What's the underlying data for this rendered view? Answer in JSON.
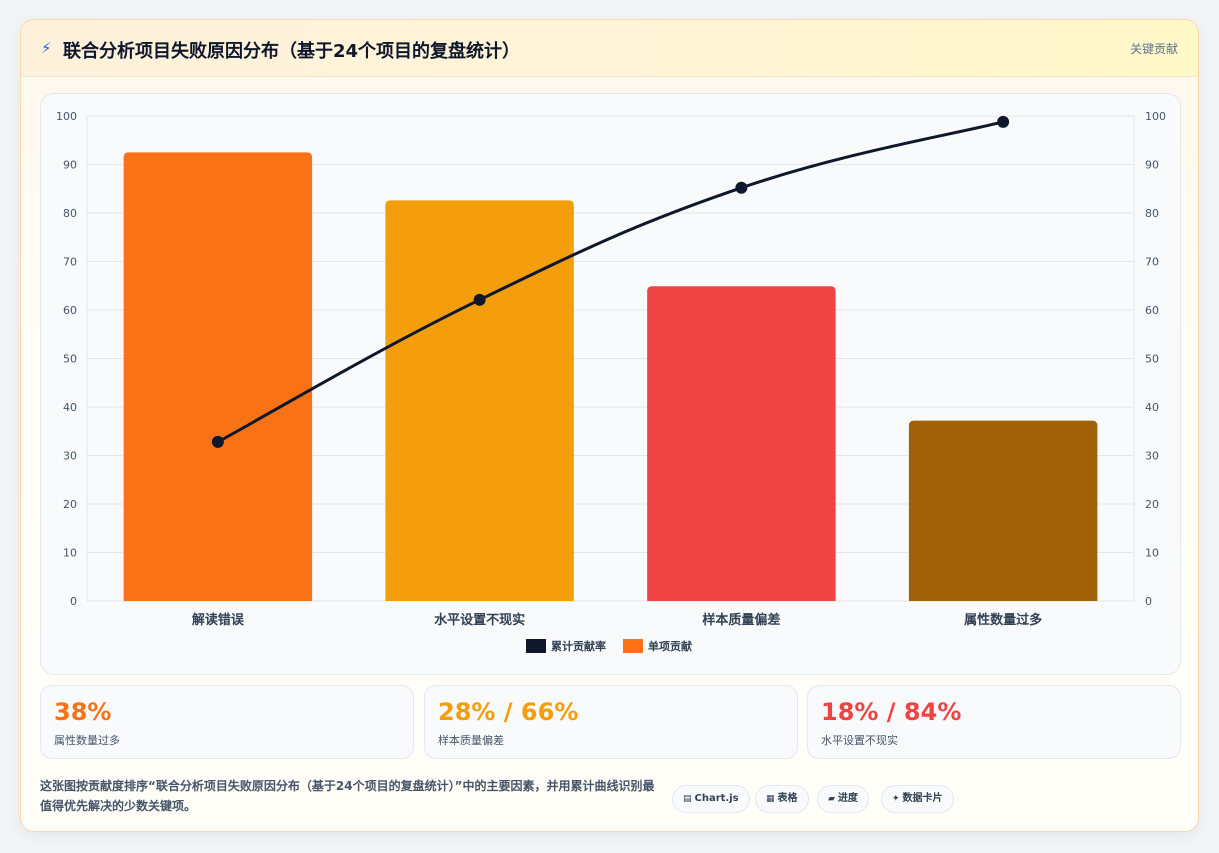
{
  "header": {
    "title": "联合分析项目失败原因分布（基于24个项目的复盘统计）",
    "tag": "关键贡献",
    "icon": "lightning-icon"
  },
  "chart_data": {
    "type": "bar",
    "categories": [
      "解读错误",
      "水平设置不现实",
      "样本质量偏差",
      "属性数量过多"
    ],
    "series": [
      {
        "name": "单项贡献",
        "type": "bar",
        "values": [
          92.5,
          82.6,
          64.9,
          37.2
        ],
        "colors": [
          "#f97316",
          "#f59e0b",
          "#ef4444",
          "#a16207"
        ]
      },
      {
        "name": "累计贡献率",
        "type": "line",
        "values": [
          32.8,
          62.1,
          85.2,
          98.8
        ],
        "color": "#0f172a"
      }
    ],
    "ylim": [
      0,
      100
    ],
    "y2lim": [
      0,
      100
    ],
    "yticks": [
      0,
      10,
      20,
      30,
      40,
      50,
      60,
      70,
      80,
      90,
      100
    ],
    "grid": true,
    "legend": [
      {
        "name": "累计贡献率",
        "color": "#0f172a"
      },
      {
        "name": "单项贡献",
        "color": "#f97316"
      }
    ],
    "legend_position": "bottom"
  },
  "stats": [
    {
      "value": "38%",
      "label": "属性数量过多",
      "color": "#f97316"
    },
    {
      "value": "28% / 66%",
      "label": "样本质量偏差",
      "color": "#f59e0b"
    },
    {
      "value": "18% / 84%",
      "label": "水平设置不现实",
      "color": "#ef4444"
    }
  ],
  "footer": {
    "text": "这张图按贡献度排序“联合分析项目失败原因分布（基于24个项目的复盘统计）”中的主要因素，并用累计曲线识别最值得优先解决的少数关键项。"
  },
  "chips": [
    {
      "label": "Chart.js",
      "icon": "chart-icon",
      "glyph": "▤"
    },
    {
      "label": "表格",
      "icon": "table-icon",
      "glyph": "▦"
    },
    {
      "label": "进度",
      "icon": "progress-icon",
      "glyph": "▰"
    },
    {
      "label": "数据卡片",
      "icon": "sparkle-icon",
      "glyph": "✦"
    }
  ]
}
